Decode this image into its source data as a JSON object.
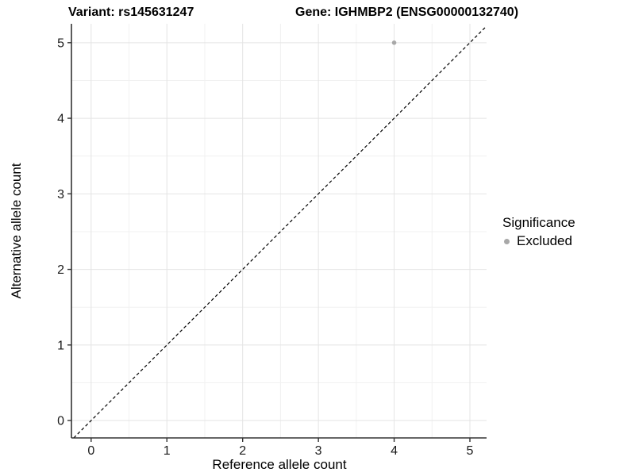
{
  "titles": {
    "variant": "Variant: rs145631247",
    "gene": "Gene: IGHMBP2 (ENSG00000132740)"
  },
  "chart_data": {
    "type": "scatter",
    "xlabel": "Reference allele count",
    "ylabel": "Alternative allele count",
    "xlim": [
      -0.26,
      5.22
    ],
    "ylim": [
      -0.23,
      5.25
    ],
    "x_major_ticks": [
      0,
      1,
      2,
      3,
      4,
      5
    ],
    "y_major_ticks": [
      0,
      1,
      2,
      3,
      4,
      5
    ],
    "x_minor_ticks": [
      0.5,
      1.5,
      2.5,
      3.5,
      4.5
    ],
    "y_minor_ticks": [
      0.5,
      1.5,
      2.5,
      3.5,
      4.5
    ],
    "grid": true,
    "reference_line": {
      "kind": "identity",
      "style": "dashed",
      "color": "#000000"
    },
    "series": [
      {
        "name": "Excluded",
        "color": "#a8a8a8",
        "points": [
          {
            "x": 4,
            "y": 5
          }
        ]
      }
    ],
    "legend": {
      "title": "Significance",
      "position": "right",
      "items": [
        {
          "label": "Excluded",
          "color": "#a8a8a8"
        }
      ]
    }
  },
  "colors": {
    "background": "#ffffff",
    "grid_major": "#e4e4e4",
    "grid_minor": "#f1f1f1",
    "axis_line": "#333333",
    "tick_mark": "#333333",
    "tick_text": "#1a1a1a"
  }
}
